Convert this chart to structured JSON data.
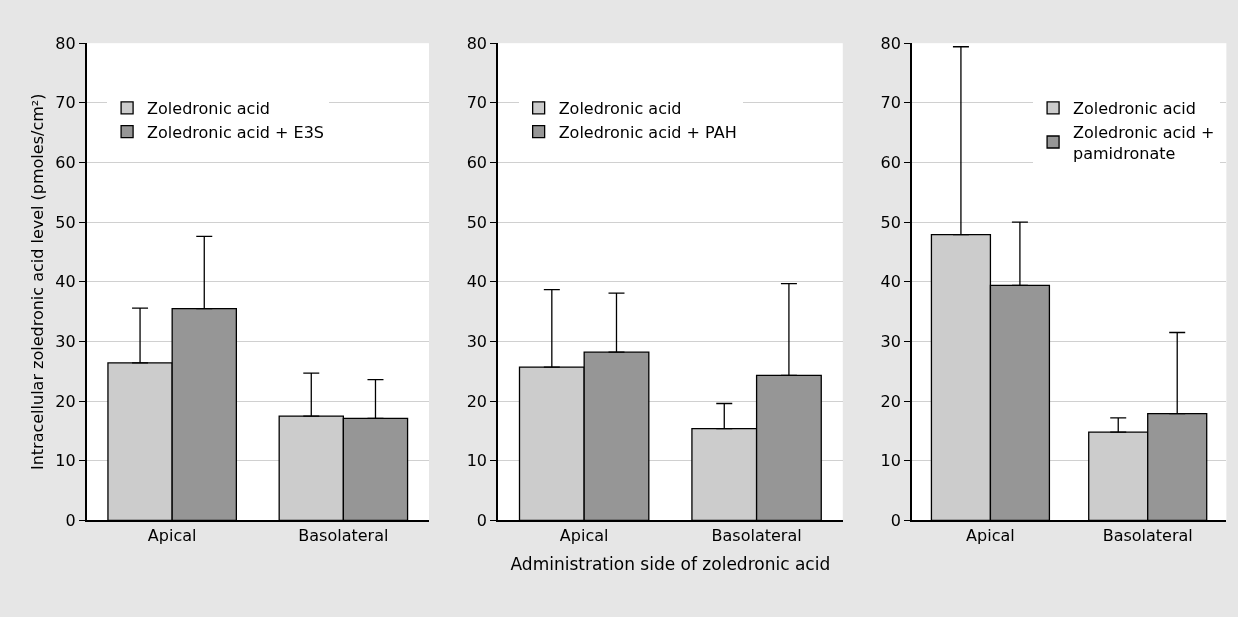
{
  "chart_data": [
    {
      "type": "bar",
      "categories": [
        "Apical",
        "Basolateral"
      ],
      "ylabel": "Intracellular zoledronic acid level (pmoles/cm²)",
      "ylim": [
        0,
        80
      ],
      "yticks": [
        0,
        10,
        20,
        30,
        40,
        50,
        60,
        70,
        80
      ],
      "grid": "y",
      "legend": "top",
      "series": [
        {
          "name": "Zoledronic acid",
          "color": "#cccccc",
          "values": [
            26.4,
            17.5
          ],
          "errors": [
            [
              26.4,
              35.6
            ],
            [
              17.5,
              24.7
            ]
          ]
        },
        {
          "name": "Zoledronic acid + E3S",
          "color": "#969696",
          "values": [
            35.5,
            17.1
          ],
          "errors": [
            [
              35.5,
              47.6
            ],
            [
              17.1,
              23.6
            ]
          ]
        }
      ]
    },
    {
      "type": "bar",
      "categories": [
        "Apical",
        "Basolateral"
      ],
      "xlabel": "Administration side of zoledronic acid",
      "ylim": [
        0,
        80
      ],
      "yticks": [
        0,
        10,
        20,
        30,
        40,
        50,
        60,
        70,
        80
      ],
      "grid": "y",
      "legend": "top",
      "series": [
        {
          "name": "Zoledronic acid",
          "color": "#cccccc",
          "values": [
            25.7,
            15.4
          ],
          "errors": [
            [
              25.7,
              38.7
            ],
            [
              15.4,
              19.6
            ]
          ]
        },
        {
          "name": "Zoledronic acid + PAH",
          "color": "#969696",
          "values": [
            28.2,
            24.3
          ],
          "errors": [
            [
              28.2,
              38.1
            ],
            [
              24.3,
              39.7
            ]
          ]
        }
      ]
    },
    {
      "type": "bar",
      "categories": [
        "Apical",
        "Basolateral"
      ],
      "ylim": [
        0,
        80
      ],
      "yticks": [
        0,
        10,
        20,
        30,
        40,
        50,
        60,
        70,
        80
      ],
      "grid": "y",
      "legend": "top right",
      "series": [
        {
          "name": "Zoledronic acid",
          "color": "#cccccc",
          "values": [
            47.9,
            14.8
          ],
          "errors": [
            [
              47.9,
              79.4
            ],
            [
              14.8,
              17.2
            ]
          ]
        },
        {
          "name": "Zoledronic acid + pamidronate",
          "color": "#969696",
          "values": [
            39.4,
            17.9
          ],
          "errors": [
            [
              39.4,
              50.0
            ],
            [
              17.9,
              31.5
            ]
          ]
        }
      ]
    }
  ]
}
